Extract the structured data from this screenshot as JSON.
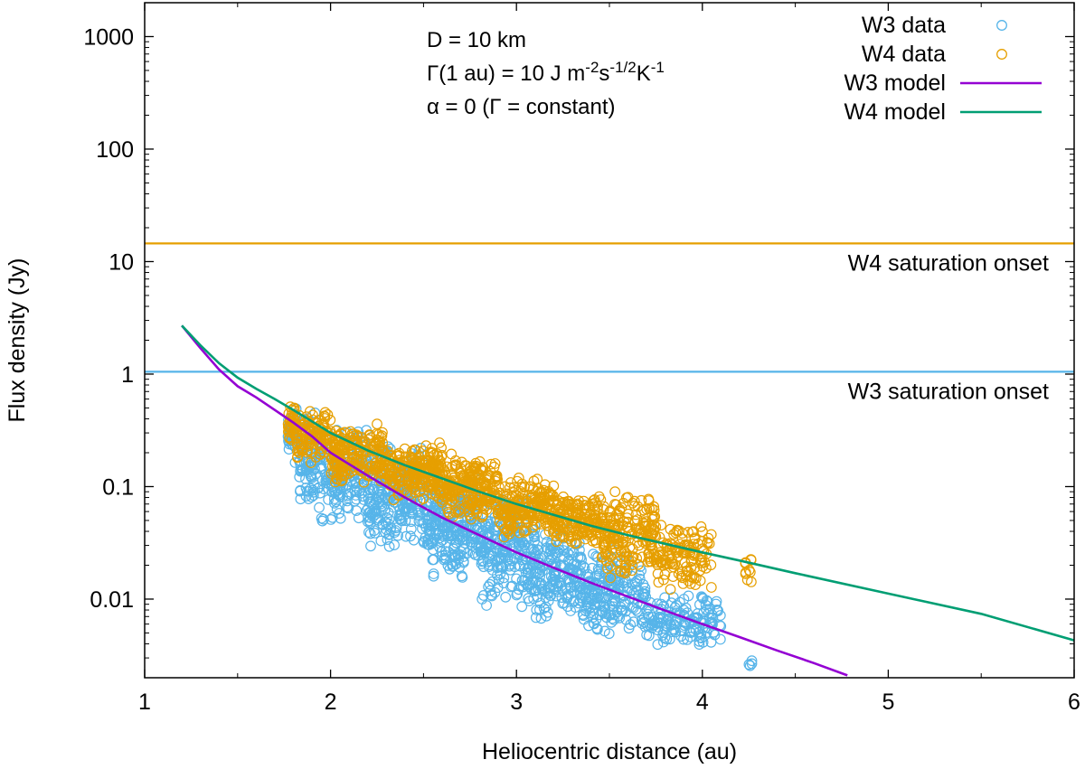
{
  "chart_data": {
    "type": "scatter",
    "xlabel": "Heliocentric distance (au)",
    "ylabel": "Flux density (Jy)",
    "xlim": [
      1,
      6
    ],
    "ylim": [
      0.002,
      2000
    ],
    "yscale": "log",
    "grid": false,
    "legend_position": "top-right",
    "x_ticks": [
      1,
      2,
      3,
      4,
      5,
      6
    ],
    "x_tick_labels": [
      "1",
      "2",
      "3",
      "4",
      "5",
      "6"
    ],
    "y_ticks": [
      0.01,
      0.1,
      1,
      10,
      100,
      1000
    ],
    "y_tick_labels": [
      "0.01",
      "0.1",
      "1",
      "10",
      "100",
      "1000"
    ],
    "annotations": [
      {
        "segments": [
          {
            "text": "D = 10 km"
          }
        ]
      },
      {
        "segments": [
          {
            "text": "Γ(1 au) = 10 J m"
          },
          {
            "text": "-2",
            "sup": true
          },
          {
            "text": "s"
          },
          {
            "text": "-1/2",
            "sup": true
          },
          {
            "text": "K"
          },
          {
            "text": "-1",
            "sup": true
          }
        ]
      },
      {
        "segments": [
          {
            "text": "α = 0 (Γ = constant)"
          }
        ]
      }
    ],
    "reference_lines": [
      {
        "label": "W4 saturation onset",
        "y": 14.5,
        "color": "#e69f00"
      },
      {
        "label": "W3 saturation onset",
        "y": 1.05,
        "color": "#56b4e9"
      }
    ],
    "series": [
      {
        "name": "W3 data",
        "kind": "scatter",
        "color": "#56b4e9",
        "clusters": [
          {
            "x": [
              1.77,
              1.82
            ],
            "y": [
              0.14,
              0.55
            ],
            "n": 40
          },
          {
            "x": [
              1.83,
              1.95
            ],
            "y": [
              0.06,
              0.5
            ],
            "n": 90
          },
          {
            "x": [
              1.95,
              2.2
            ],
            "y": [
              0.045,
              0.35
            ],
            "n": 180
          },
          {
            "x": [
              2.2,
              2.5
            ],
            "y": [
              0.025,
              0.25
            ],
            "n": 240
          },
          {
            "x": [
              2.5,
              2.8
            ],
            "y": [
              0.014,
              0.15
            ],
            "n": 260
          },
          {
            "x": [
              2.8,
              3.1
            ],
            "y": [
              0.008,
              0.09
            ],
            "n": 240
          },
          {
            "x": [
              3.1,
              3.35
            ],
            "y": [
              0.006,
              0.05
            ],
            "n": 180
          },
          {
            "x": [
              3.35,
              3.7
            ],
            "y": [
              0.0045,
              0.03
            ],
            "n": 200
          },
          {
            "x": [
              3.7,
              4.1
            ],
            "y": [
              0.0035,
              0.012
            ],
            "n": 140
          },
          {
            "x": [
              4.24,
              4.27
            ],
            "y": [
              0.002,
              0.004
            ],
            "n": 4
          }
        ]
      },
      {
        "name": "W4 data",
        "kind": "scatter",
        "color": "#e69f00",
        "clusters": [
          {
            "x": [
              1.77,
              1.82
            ],
            "y": [
              0.22,
              0.55
            ],
            "n": 40
          },
          {
            "x": [
              1.82,
              2.0
            ],
            "y": [
              0.15,
              0.5
            ],
            "n": 110
          },
          {
            "x": [
              2.0,
              2.3
            ],
            "y": [
              0.1,
              0.35
            ],
            "n": 200
          },
          {
            "x": [
              2.3,
              2.6
            ],
            "y": [
              0.07,
              0.25
            ],
            "n": 220
          },
          {
            "x": [
              2.6,
              2.9
            ],
            "y": [
              0.05,
              0.18
            ],
            "n": 220
          },
          {
            "x": [
              2.9,
              3.2
            ],
            "y": [
              0.035,
              0.12
            ],
            "n": 200
          },
          {
            "x": [
              3.2,
              3.45
            ],
            "y": [
              0.03,
              0.085
            ],
            "n": 160
          },
          {
            "x": [
              3.45,
              3.75
            ],
            "y": [
              0.015,
              0.09
            ],
            "n": 200
          },
          {
            "x": [
              3.75,
              4.05
            ],
            "y": [
              0.012,
              0.05
            ],
            "n": 130
          },
          {
            "x": [
              4.23,
              4.27
            ],
            "y": [
              0.013,
              0.025
            ],
            "n": 10
          }
        ],
        "extra_points": [
          [
            2.65,
            0.195
          ],
          [
            3.53,
            0.09
          ],
          [
            2.25,
            0.36
          ]
        ]
      },
      {
        "name": "W3 model",
        "kind": "line",
        "color": "#9400d3",
        "x": [
          1.2,
          1.3,
          1.4,
          1.5,
          1.6,
          1.7,
          1.8,
          1.9,
          2.0,
          2.2,
          2.4,
          2.6,
          2.8,
          3.0,
          3.2,
          3.4,
          3.6,
          3.8,
          4.0,
          4.2,
          4.4,
          4.6,
          4.78
        ],
        "y": [
          2.7,
          1.7,
          1.1,
          0.78,
          0.62,
          0.48,
          0.37,
          0.28,
          0.2,
          0.125,
          0.08,
          0.053,
          0.037,
          0.026,
          0.019,
          0.014,
          0.0105,
          0.0079,
          0.006,
          0.0046,
          0.0035,
          0.0027,
          0.0021
        ]
      },
      {
        "name": "W4 model",
        "kind": "line",
        "color": "#009e73",
        "x": [
          1.2,
          1.3,
          1.4,
          1.5,
          1.6,
          1.7,
          1.8,
          1.9,
          2.0,
          2.2,
          2.4,
          2.6,
          2.8,
          3.0,
          3.2,
          3.4,
          3.6,
          3.8,
          4.0,
          4.2,
          4.5,
          5.0,
          5.5,
          6.0
        ],
        "y": [
          2.7,
          1.8,
          1.25,
          0.93,
          0.74,
          0.6,
          0.48,
          0.38,
          0.3,
          0.21,
          0.155,
          0.118,
          0.09,
          0.07,
          0.056,
          0.045,
          0.037,
          0.031,
          0.026,
          0.022,
          0.017,
          0.0112,
          0.0074,
          0.0043
        ]
      }
    ]
  }
}
